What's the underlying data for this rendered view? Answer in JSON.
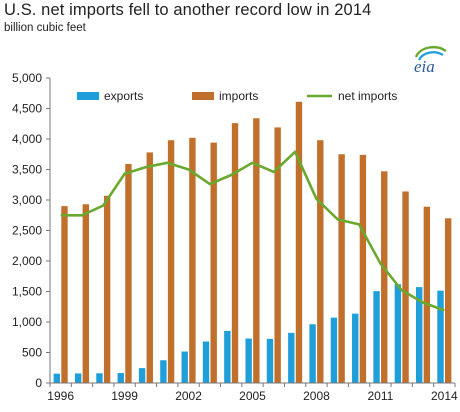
{
  "title": "U.S. net imports fell to another record low in 2014",
  "subtitle": "billion cubic feet",
  "logo_text": "eia",
  "colors": {
    "exports": "#1f9fd9",
    "imports": "#c0702b",
    "net_imports": "#6aa82f",
    "logo_arc_green": "#6aa82f",
    "logo_arc_blue": "#1f9fd9"
  },
  "chart_data": {
    "type": "bar",
    "x": [
      1996,
      1997,
      1998,
      1999,
      2000,
      2001,
      2002,
      2003,
      2004,
      2005,
      2006,
      2007,
      2008,
      2009,
      2010,
      2011,
      2012,
      2013,
      2014
    ],
    "x_tick_labels": [
      "1996",
      "1999",
      "2002",
      "2005",
      "2008",
      "2011",
      "2014"
    ],
    "ylim": [
      0,
      5000
    ],
    "y_tick_labels": [
      "0",
      "500",
      "1,000",
      "1,500",
      "2,000",
      "2,500",
      "3,000",
      "3,500",
      "4,000",
      "4,500",
      "5,000"
    ],
    "grid": false,
    "legend_placement": "top",
    "series": [
      {
        "name": "exports",
        "type": "bar",
        "values": [
          153,
          157,
          159,
          163,
          244,
          373,
          516,
          680,
          854,
          729,
          724,
          822,
          963,
          1072,
          1137,
          1506,
          1619,
          1572,
          1514
        ]
      },
      {
        "name": "imports",
        "type": "bar",
        "values": [
          2900,
          2930,
          3070,
          3590,
          3780,
          3980,
          4020,
          3940,
          4260,
          4340,
          4190,
          4610,
          3980,
          3750,
          3740,
          3470,
          3140,
          2890,
          2700
        ]
      },
      {
        "name": "net imports",
        "type": "line",
        "values": [
          2750,
          2750,
          2910,
          3430,
          3540,
          3610,
          3500,
          3260,
          3410,
          3610,
          3460,
          3790,
          3020,
          2680,
          2600,
          1960,
          1520,
          1320,
          1190
        ]
      }
    ]
  }
}
